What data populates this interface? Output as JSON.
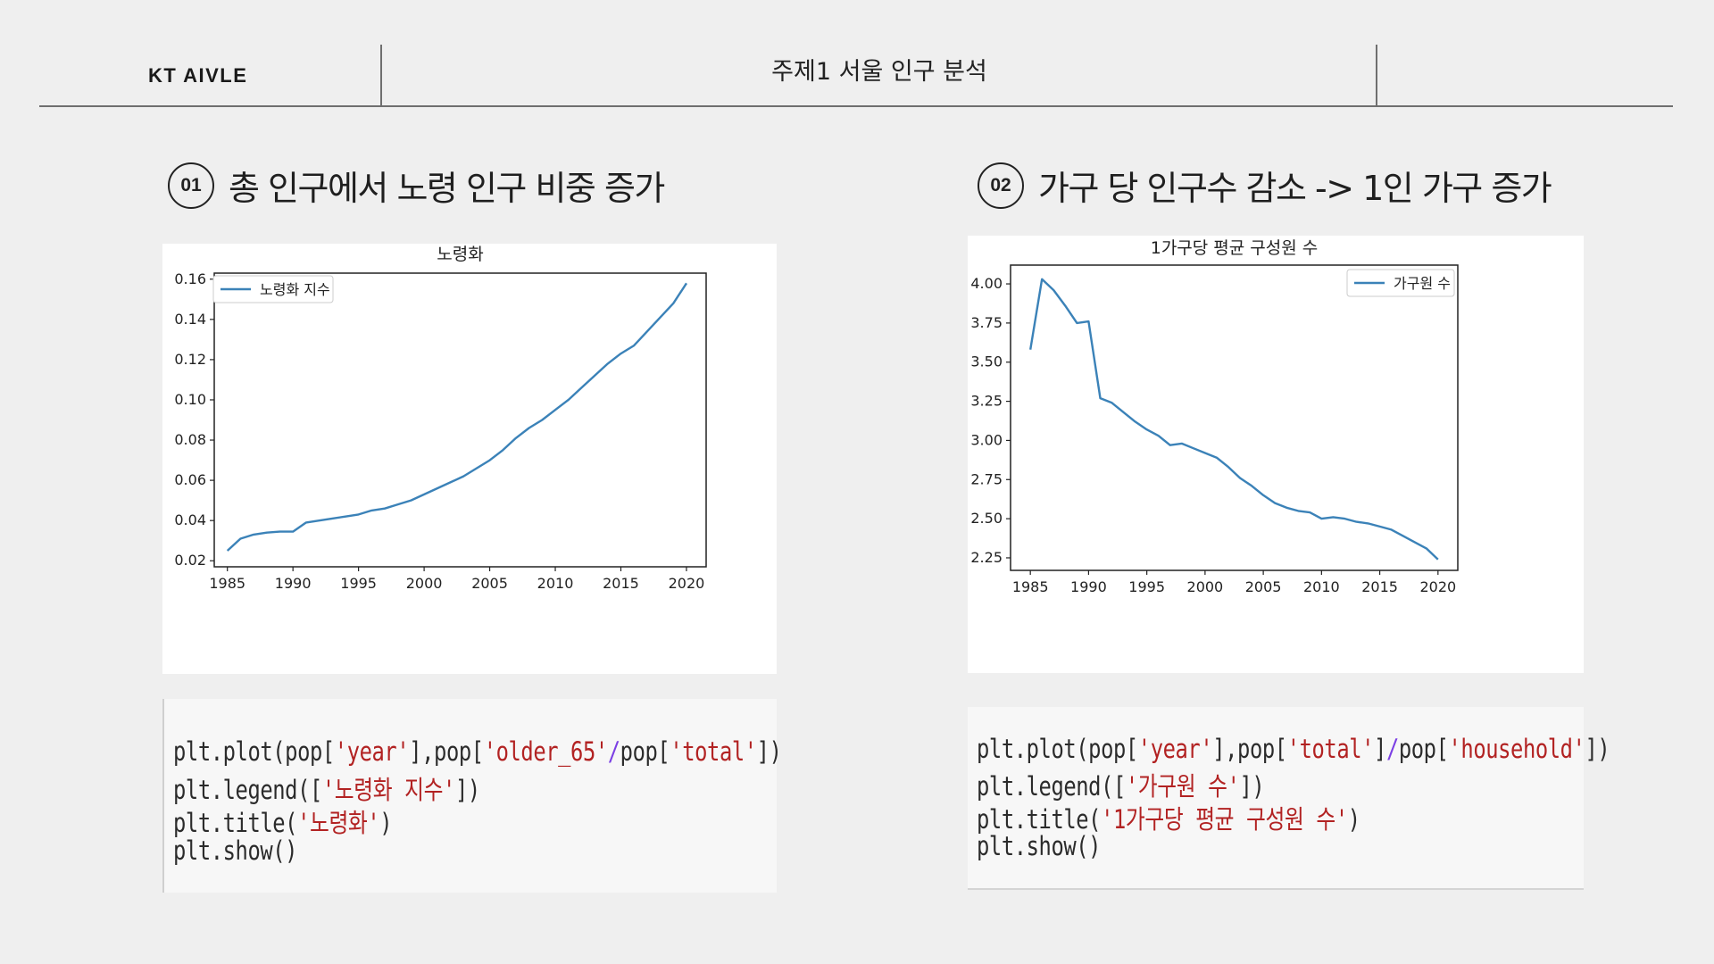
{
  "header": {
    "brand": "KT AIVLE",
    "title": "주제1 서울 인구 분석"
  },
  "sections": [
    {
      "number": "01",
      "heading": "총 인구에서 노령 인구 비중 증가",
      "code": [
        [
          [
            "plt.plot(pop[",
            ""
          ],
          [
            "'year'",
            "str"
          ],
          [
            "],pop[",
            ""
          ],
          [
            "'older_65'",
            "str"
          ],
          [
            "/",
            "op"
          ],
          [
            "pop[",
            ""
          ],
          [
            "'total'",
            "str"
          ],
          [
            "])",
            ""
          ]
        ],
        [
          [
            "plt.legend([",
            ""
          ],
          [
            "'노령화 지수'",
            "str"
          ],
          [
            "])",
            ""
          ]
        ],
        [
          [
            "plt.title(",
            ""
          ],
          [
            "'노령화'",
            "str"
          ],
          [
            ")",
            ""
          ]
        ],
        [
          [
            "plt.show()",
            ""
          ]
        ]
      ]
    },
    {
      "number": "02",
      "heading": "가구 당 인구수 감소 -> 1인 가구 증가",
      "code": [
        [
          [
            "plt.plot(pop[",
            ""
          ],
          [
            "'year'",
            "str"
          ],
          [
            "],pop[",
            ""
          ],
          [
            "'total'",
            "str"
          ],
          [
            "]",
            ""
          ],
          [
            "/",
            "op"
          ],
          [
            "pop[",
            ""
          ],
          [
            "'household'",
            "str"
          ],
          [
            "])",
            ""
          ]
        ],
        [
          [
            "plt.legend([",
            ""
          ],
          [
            "'가구원 수'",
            "str"
          ],
          [
            "])",
            ""
          ]
        ],
        [
          [
            "plt.title(",
            ""
          ],
          [
            "'1가구당 평균 구성원 수'",
            "str"
          ],
          [
            ")",
            ""
          ]
        ],
        [
          [
            "plt.show()",
            ""
          ]
        ]
      ]
    }
  ],
  "chart_data": [
    {
      "type": "line",
      "title": "노령화",
      "xlabel": "",
      "ylabel": "",
      "xlim": [
        1984,
        2021.5
      ],
      "ylim": [
        0.017,
        0.163
      ],
      "x_ticks": [
        1985,
        1990,
        1995,
        2000,
        2005,
        2010,
        2015,
        2020
      ],
      "y_ticks": [
        0.02,
        0.04,
        0.06,
        0.08,
        0.1,
        0.12,
        0.14,
        0.16
      ],
      "y_tick_labels": [
        "0.02",
        "0.04",
        "0.06",
        "0.08",
        "0.10",
        "0.12",
        "0.14",
        "0.16"
      ],
      "legend_position": "upper-left",
      "color": "#3b82b8",
      "series": [
        {
          "name": "노령화 지수",
          "x": [
            1985,
            1986,
            1987,
            1988,
            1989,
            1990,
            1991,
            1992,
            1993,
            1994,
            1995,
            1996,
            1997,
            1998,
            1999,
            2000,
            2001,
            2002,
            2003,
            2004,
            2005,
            2006,
            2007,
            2008,
            2009,
            2010,
            2011,
            2012,
            2013,
            2014,
            2015,
            2016,
            2017,
            2018,
            2019,
            2020
          ],
          "y": [
            0.025,
            0.031,
            0.033,
            0.034,
            0.0345,
            0.0345,
            0.039,
            0.04,
            0.041,
            0.042,
            0.043,
            0.045,
            0.046,
            0.048,
            0.05,
            0.053,
            0.056,
            0.059,
            0.062,
            0.066,
            0.07,
            0.075,
            0.081,
            0.086,
            0.09,
            0.095,
            0.1,
            0.106,
            0.112,
            0.118,
            0.123,
            0.127,
            0.134,
            0.141,
            0.148,
            0.158
          ]
        }
      ]
    },
    {
      "type": "line",
      "title": "1가구당 평균 구성원 수",
      "xlabel": "",
      "ylabel": "",
      "xlim": [
        1983.3,
        2021.7
      ],
      "ylim": [
        2.17,
        4.12
      ],
      "x_ticks": [
        1985,
        1990,
        1995,
        2000,
        2005,
        2010,
        2015,
        2020
      ],
      "y_ticks": [
        2.25,
        2.5,
        2.75,
        3.0,
        3.25,
        3.5,
        3.75,
        4.0
      ],
      "y_tick_labels": [
        "2.25",
        "2.50",
        "2.75",
        "3.00",
        "3.25",
        "3.50",
        "3.75",
        "4.00"
      ],
      "legend_position": "upper-right",
      "color": "#3b82b8",
      "series": [
        {
          "name": "가구원 수",
          "x": [
            1985,
            1986,
            1987,
            1988,
            1989,
            1990,
            1991,
            1992,
            1993,
            1994,
            1995,
            1996,
            1997,
            1998,
            1999,
            2000,
            2001,
            2002,
            2003,
            2004,
            2005,
            2006,
            2007,
            2008,
            2009,
            2010,
            2011,
            2012,
            2013,
            2014,
            2015,
            2016,
            2017,
            2018,
            2019,
            2020
          ],
          "y": [
            3.58,
            4.03,
            3.96,
            3.86,
            3.75,
            3.76,
            3.27,
            3.24,
            3.18,
            3.12,
            3.07,
            3.03,
            2.97,
            2.98,
            2.95,
            2.92,
            2.89,
            2.83,
            2.76,
            2.71,
            2.65,
            2.6,
            2.57,
            2.55,
            2.54,
            2.5,
            2.51,
            2.5,
            2.48,
            2.47,
            2.45,
            2.43,
            2.39,
            2.35,
            2.31,
            2.24
          ]
        }
      ]
    }
  ]
}
